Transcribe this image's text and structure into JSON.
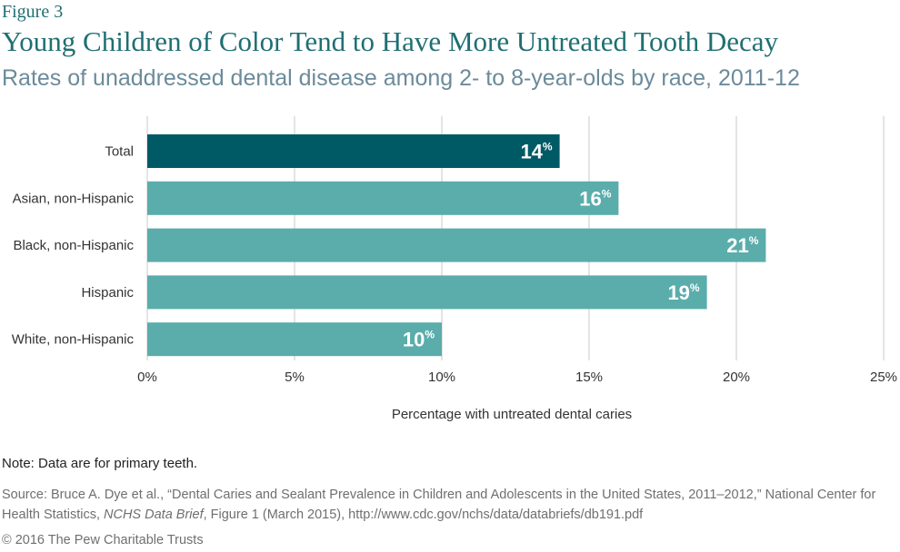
{
  "figure_label": "Figure 3",
  "source": {
    "prefix": "Source: Bruce A. Dye et al., “Dental Caries and Sealant Prevalence in Children and Adolescents in the United States, 2011–2012,” National Center for Health Statistics, ",
    "italic": "NCHS Data Brief",
    "suffix": ", Figure 1 (March 2015), http://www.cdc.gov/nchs/data/databriefs/db191.pdf"
  },
  "note": "Note: Data are for primary teeth.",
  "copyright": "© 2016 The Pew Charitable Trusts",
  "colors": {
    "highlight_bar": "#005a66",
    "bar": "#5aadab",
    "grid": "#c8c8c8"
  },
  "chart_data": {
    "type": "bar",
    "orientation": "horizontal",
    "title": "Young Children of Color Tend to Have More Untreated Tooth Decay",
    "subtitle": "Rates of unaddressed dental disease among 2- to 8-year-olds by race, 2011-12",
    "categories": [
      "Total",
      "Asian, non-Hispanic",
      "Black, non-Hispanic",
      "Hispanic",
      "White, non-Hispanic"
    ],
    "values": [
      14,
      16,
      21,
      19,
      10
    ],
    "value_labels": [
      "14",
      "16",
      "21",
      "19",
      "10"
    ],
    "value_suffix": "%",
    "highlight_index": 0,
    "xlabel": "Percentage with untreated dental caries",
    "ylabel": "",
    "xlim": [
      0,
      25
    ],
    "xticks": [
      0,
      5,
      10,
      15,
      20,
      25
    ],
    "xtick_labels": [
      "0%",
      "5%",
      "10%",
      "15%",
      "20%",
      "25%"
    ],
    "grid": true
  }
}
